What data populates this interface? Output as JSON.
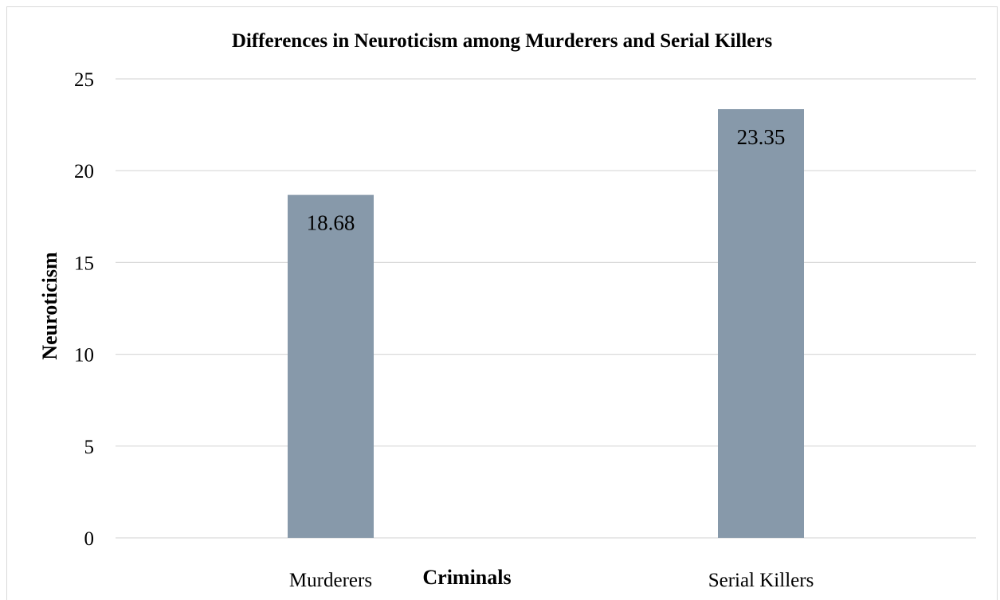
{
  "chart_data": {
    "type": "bar",
    "title": "Differences in Neuroticism among Murderers and Serial Killers",
    "xlabel": "Criminals",
    "ylabel": "Neuroticism",
    "categories": [
      "Murderers",
      "Serial Killers"
    ],
    "values": [
      18.68,
      23.35
    ],
    "data_labels": [
      "18.68",
      "23.35"
    ],
    "ylim": [
      0,
      25
    ],
    "yticks": [
      0,
      5,
      10,
      15,
      20,
      25
    ],
    "ytick_labels": [
      "0",
      "5",
      "10",
      "15",
      "20",
      "25"
    ],
    "grid": true,
    "legend": "none",
    "bar_color": "#8799aa"
  }
}
